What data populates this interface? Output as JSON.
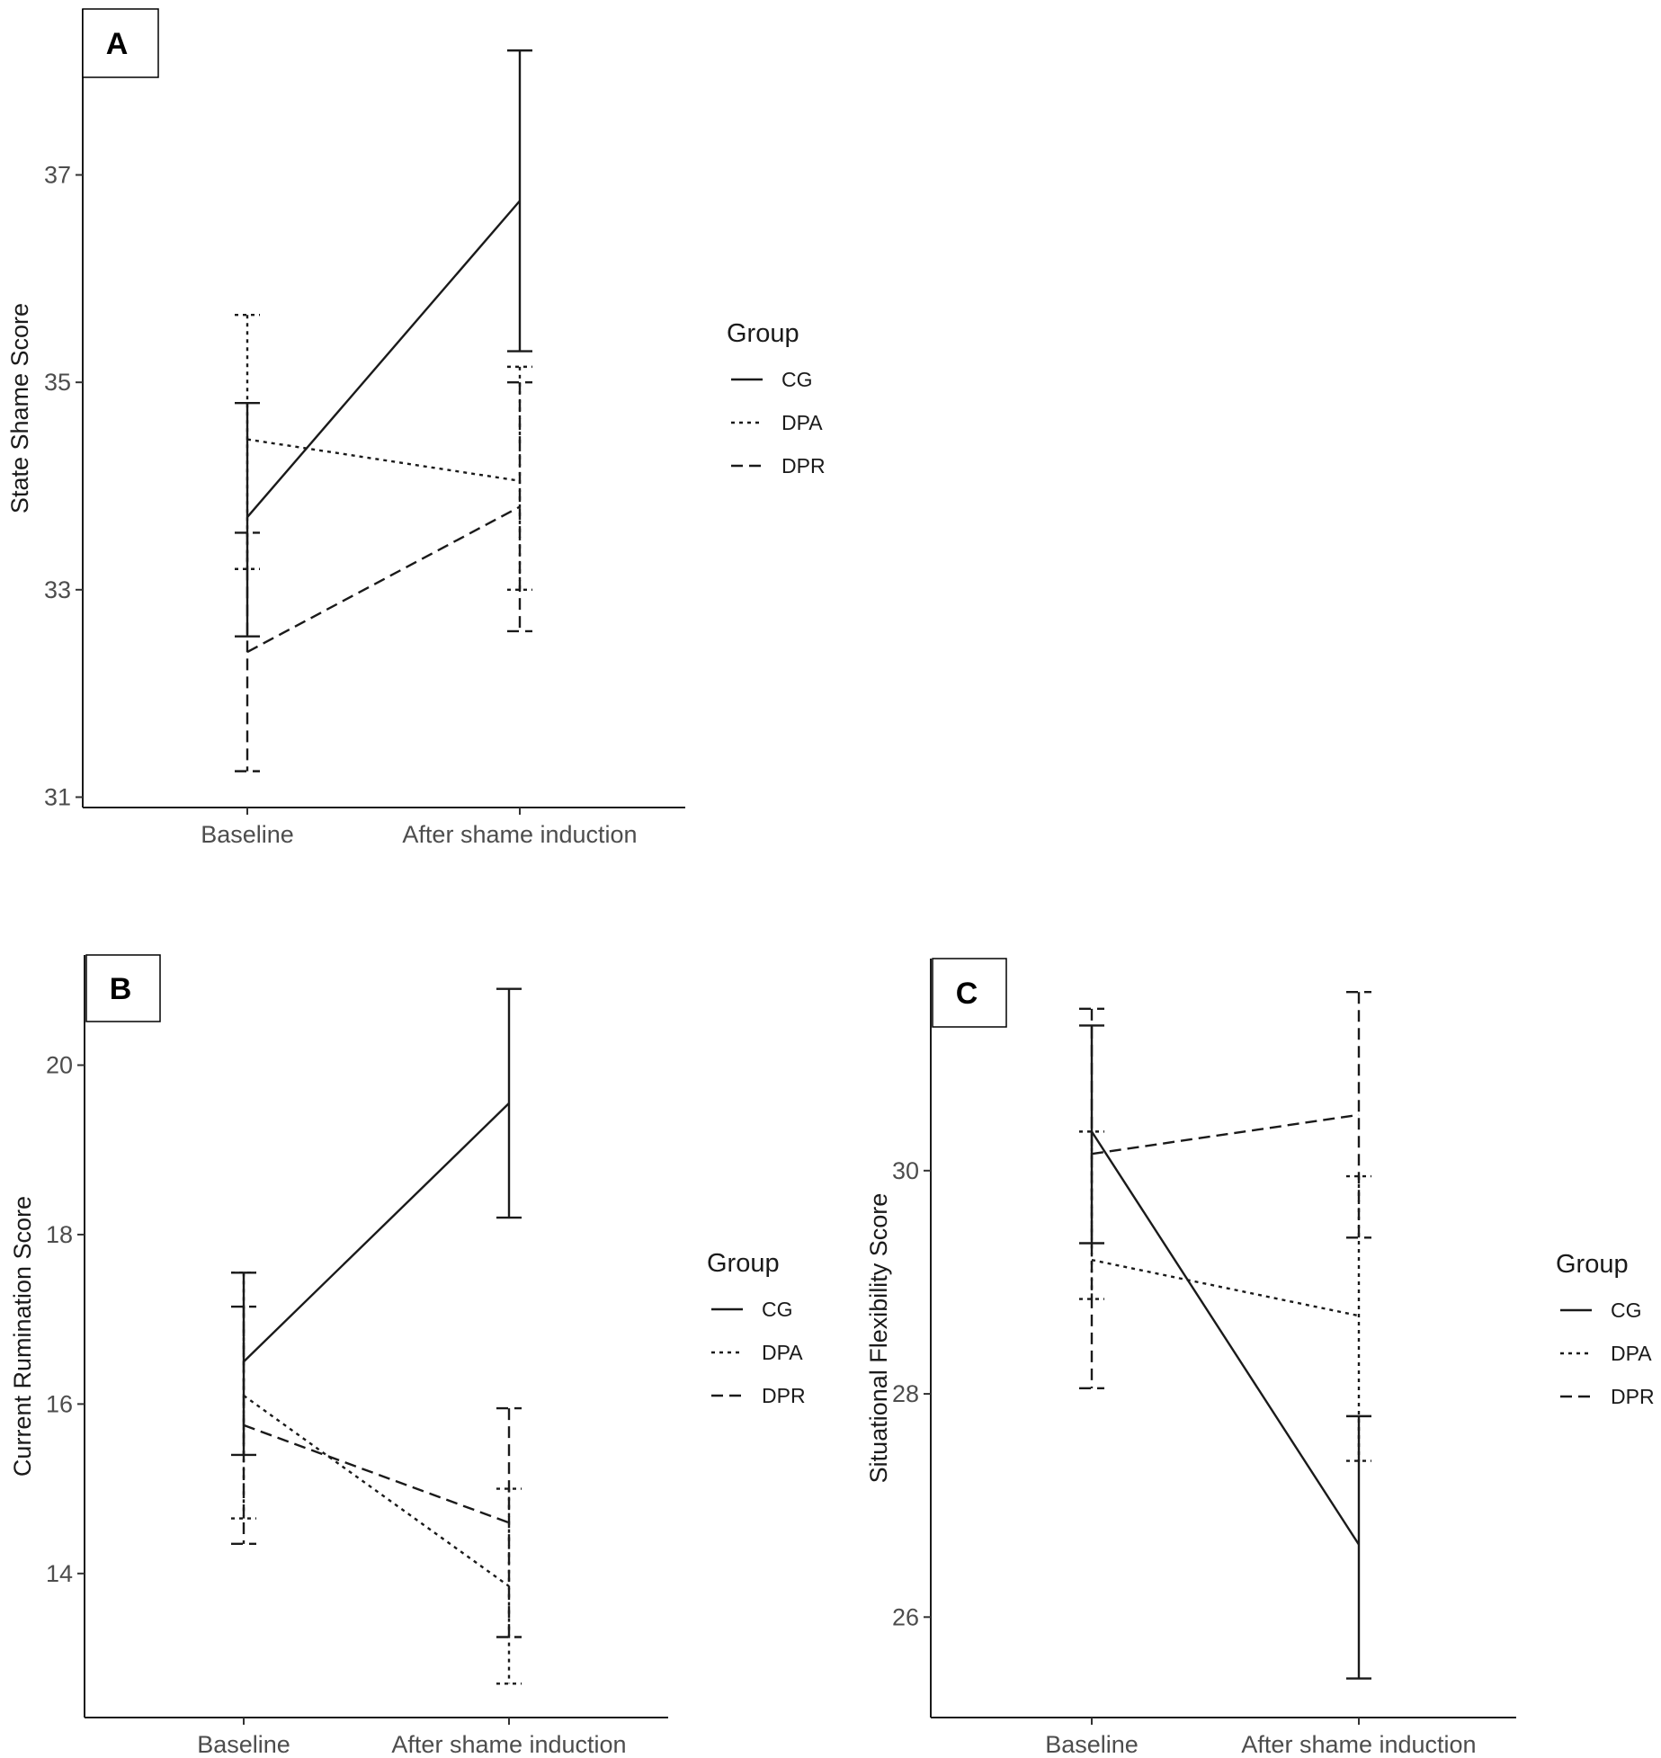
{
  "chart_data": [
    {
      "panel": "A",
      "type": "line",
      "xlabel": "",
      "ylabel": "State Shame Score",
      "categories": [
        "Baseline",
        "After shame induction"
      ],
      "ylim": [
        30.9,
        38.6
      ],
      "yticks": [
        31,
        33,
        35,
        37
      ],
      "legend_title": "Group",
      "legend_position": "right",
      "grid": false,
      "error_bars": true,
      "series": [
        {
          "name": "CG",
          "dash": "solid",
          "values": [
            33.7,
            36.75
          ],
          "lower": [
            32.55,
            35.3
          ],
          "upper": [
            34.8,
            38.2
          ]
        },
        {
          "name": "DPA",
          "dash": "dotted",
          "values": [
            34.45,
            34.05
          ],
          "lower": [
            33.2,
            33.0
          ],
          "upper": [
            35.65,
            35.15
          ]
        },
        {
          "name": "DPR",
          "dash": "dashed",
          "values": [
            32.4,
            33.8
          ],
          "lower": [
            31.25,
            32.6
          ],
          "upper": [
            33.55,
            35.0
          ]
        }
      ]
    },
    {
      "panel": "B",
      "type": "line",
      "xlabel": "",
      "ylabel": "Current Rumination Score",
      "categories": [
        "Baseline",
        "After shame induction"
      ],
      "ylim": [
        12.3,
        21.3
      ],
      "yticks": [
        14,
        16,
        18,
        20
      ],
      "legend_title": "Group",
      "legend_position": "right",
      "grid": false,
      "error_bars": true,
      "series": [
        {
          "name": "CG",
          "dash": "solid",
          "values": [
            16.5,
            19.55
          ],
          "lower": [
            15.4,
            18.2
          ],
          "upper": [
            17.55,
            20.9
          ]
        },
        {
          "name": "DPA",
          "dash": "dotted",
          "values": [
            16.1,
            13.85
          ],
          "lower": [
            14.65,
            12.7
          ],
          "upper": [
            17.55,
            15.0
          ]
        },
        {
          "name": "DPR",
          "dash": "dashed",
          "values": [
            15.75,
            14.6
          ],
          "lower": [
            14.35,
            13.25
          ],
          "upper": [
            17.15,
            15.95
          ]
        }
      ]
    },
    {
      "panel": "C",
      "type": "line",
      "xlabel": "",
      "ylabel": "Situational Flexibility Score",
      "categories": [
        "Baseline",
        "After shame induction"
      ],
      "ylim": [
        25.1,
        31.9
      ],
      "yticks": [
        26,
        28,
        30
      ],
      "legend_title": "Group",
      "legend_position": "right",
      "grid": false,
      "error_bars": true,
      "series": [
        {
          "name": "CG",
          "dash": "solid",
          "values": [
            30.35,
            26.65
          ],
          "lower": [
            29.35,
            25.45
          ],
          "upper": [
            31.3,
            27.8
          ]
        },
        {
          "name": "DPA",
          "dash": "dotted",
          "values": [
            29.2,
            28.7
          ],
          "lower": [
            28.85,
            27.4
          ],
          "upper": [
            30.35,
            29.95
          ]
        },
        {
          "name": "DPR",
          "dash": "dashed",
          "values": [
            30.15,
            30.5
          ],
          "lower": [
            28.05,
            29.4
          ],
          "upper": [
            31.45,
            31.6
          ]
        }
      ]
    }
  ]
}
